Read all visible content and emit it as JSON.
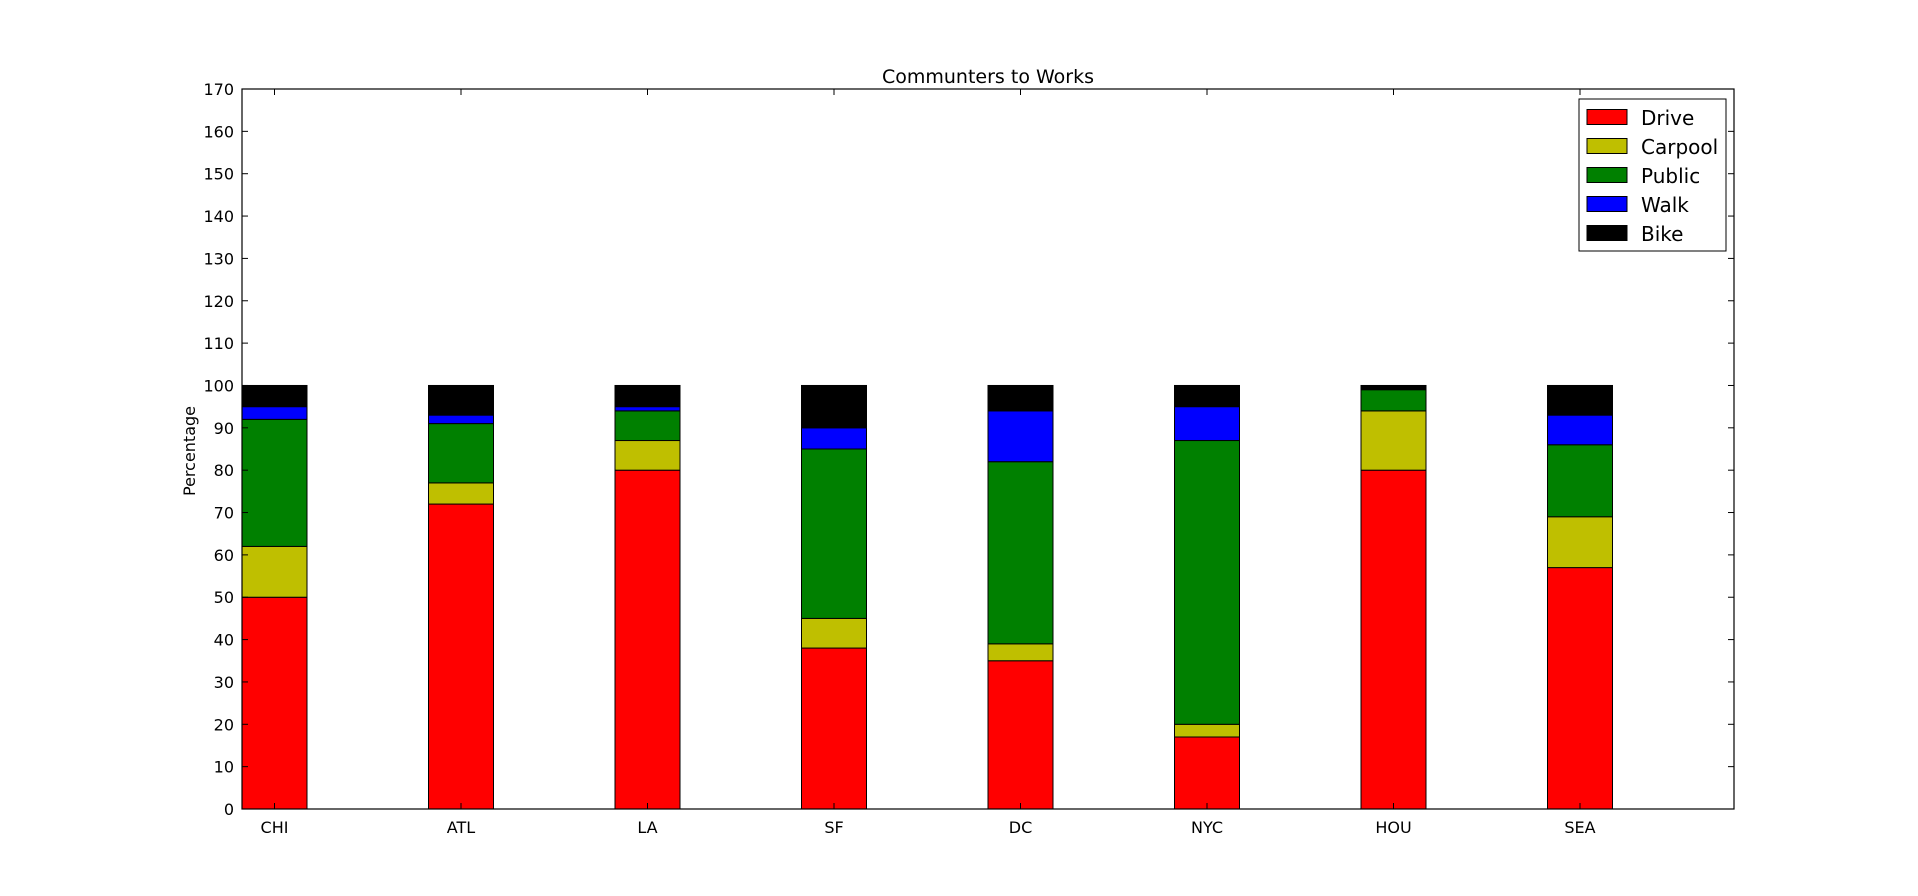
{
  "chart_data": {
    "type": "bar",
    "stacked": true,
    "title": "Communters to Works",
    "xlabel": "",
    "ylabel": "Percentage",
    "ylim": [
      0,
      170
    ],
    "yticks": [
      0,
      10,
      20,
      30,
      40,
      50,
      60,
      70,
      80,
      90,
      100,
      110,
      120,
      130,
      140,
      150,
      160,
      170
    ],
    "categories": [
      "CHI",
      "ATL",
      "LA",
      "SF",
      "DC",
      "NYC",
      "HOU",
      "SEA"
    ],
    "series": [
      {
        "name": "Drive",
        "color": "#ff0000",
        "values": [
          50,
          72,
          80,
          38,
          35,
          17,
          80,
          57
        ]
      },
      {
        "name": "Carpool",
        "color": "#bfbf00",
        "values": [
          12,
          5,
          7,
          7,
          4,
          3,
          14,
          12
        ]
      },
      {
        "name": "Public",
        "color": "#008000",
        "values": [
          30,
          14,
          7,
          40,
          43,
          67,
          5,
          17
        ]
      },
      {
        "name": "Walk",
        "color": "#0000ff",
        "values": [
          3,
          2,
          1,
          5,
          12,
          8,
          0,
          7
        ]
      },
      {
        "name": "Bike",
        "color": "#000000",
        "values": [
          5,
          7,
          5,
          10,
          6,
          5,
          1,
          7
        ]
      }
    ],
    "grid": false,
    "legend_position": "top-right"
  }
}
